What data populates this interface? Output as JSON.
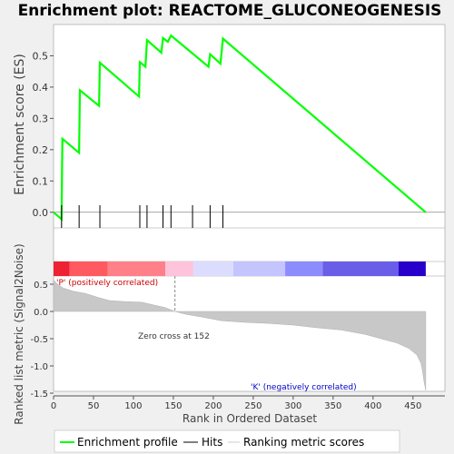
{
  "chart_data": {
    "type": "line",
    "title": "Enrichment plot: REACTOME_GLUCONEOGENESIS",
    "n_genes": 466,
    "xlabel": "Rank in Ordered Dataset",
    "xlim": [
      0,
      490
    ],
    "x_ticks": [
      0,
      50,
      100,
      150,
      200,
      250,
      300,
      350,
      400,
      450
    ],
    "top_panel": {
      "ylabel": "Enrichment score (ES)",
      "ylim": [
        -0.05,
        0.6
      ],
      "y_ticks": [
        "0.0",
        "0.1",
        "0.2",
        "0.3",
        "0.4",
        "0.5"
      ],
      "y_tick_values": [
        0.0,
        0.1,
        0.2,
        0.3,
        0.4,
        0.5
      ],
      "series": [
        {
          "name": "Enrichment profile",
          "color": "#00ff00",
          "x": [
            0,
            10,
            11,
            32,
            33,
            57,
            58,
            107,
            108,
            115,
            117,
            135,
            137,
            143,
            147,
            194,
            196,
            209,
            212,
            466
          ],
          "y": [
            0.0,
            -0.022,
            0.235,
            0.19,
            0.39,
            0.34,
            0.478,
            0.37,
            0.48,
            0.465,
            0.55,
            0.51,
            0.557,
            0.545,
            0.565,
            0.465,
            0.505,
            0.475,
            0.555,
            0.0
          ]
        }
      ]
    },
    "hits": {
      "name": "Hits",
      "positions": [
        10,
        32,
        58,
        108,
        117,
        137,
        147,
        174,
        196,
        212
      ]
    },
    "color_bar": {
      "segments": [
        {
          "from": 0,
          "to": 20,
          "color": "#ee2233"
        },
        {
          "from": 20,
          "to": 68,
          "color": "#ff5a60"
        },
        {
          "from": 68,
          "to": 140,
          "color": "#ff8088"
        },
        {
          "from": 140,
          "to": 175,
          "color": "#ffc4dc"
        },
        {
          "from": 175,
          "to": 225,
          "color": "#dcdcff"
        },
        {
          "from": 225,
          "to": 290,
          "color": "#c4c4ff"
        },
        {
          "from": 290,
          "to": 337,
          "color": "#8c8cff"
        },
        {
          "from": 337,
          "to": 432,
          "color": "#6a5de8"
        },
        {
          "from": 432,
          "to": 466,
          "color": "#2800cc"
        }
      ]
    },
    "bottom_panel": {
      "ylabel": "Ranked list metric (Signal2Noise)",
      "ylim": [
        -1.55,
        0.65
      ],
      "y_ticks": [
        "0.5",
        "0.0",
        "-0.5",
        "-1.0",
        "-1.5"
      ],
      "y_tick_values": [
        0.5,
        0.0,
        -0.5,
        -1.0,
        -1.5
      ],
      "metric_profile": {
        "name": "Ranking metric scores",
        "x": [
          0,
          5,
          12,
          25,
          40,
          55,
          70,
          90,
          110,
          125,
          140,
          152,
          165,
          185,
          210,
          240,
          270,
          300,
          330,
          360,
          390,
          410,
          430,
          445,
          455,
          460,
          462,
          464,
          466
        ],
        "y": [
          0.58,
          0.5,
          0.43,
          0.37,
          0.33,
          0.26,
          0.2,
          0.18,
          0.17,
          0.12,
          0.07,
          0.0,
          -0.05,
          -0.1,
          -0.17,
          -0.2,
          -0.22,
          -0.25,
          -0.3,
          -0.34,
          -0.42,
          -0.5,
          -0.58,
          -0.68,
          -0.8,
          -0.95,
          -1.1,
          -1.3,
          -1.45
        ]
      },
      "zero_cross_label": "Zero cross at 152",
      "zero_cross": 152,
      "pos_label": "'P' (positively correlated)",
      "neg_label": "'K' (negatively correlated)"
    },
    "legend": [
      "Enrichment profile",
      "Hits",
      "Ranking metric scores"
    ],
    "legend_placement": "bottom"
  }
}
